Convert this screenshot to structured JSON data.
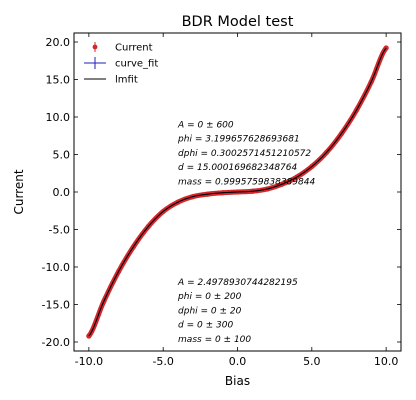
{
  "chart_data": {
    "type": "scatter",
    "title": "BDR Model test",
    "xlabel": "Bias",
    "ylabel": "Current",
    "xlim": [
      -11,
      11
    ],
    "ylim": [
      -21.2,
      21.2
    ],
    "xticks": [
      -10,
      -5,
      0,
      5,
      10
    ],
    "yticks": [
      -20,
      -15,
      -10,
      -5,
      0,
      5,
      10,
      15,
      20
    ],
    "xtick_labels": [
      "-10.0",
      "-5.0",
      "0.0",
      "5.0",
      "10.0"
    ],
    "ytick_labels": [
      "-20.0",
      "-15.0",
      "-10.0",
      "-5.0",
      "0.0",
      "5.0",
      "10.0",
      "15.0",
      "20.0"
    ],
    "grid": false,
    "legend_position": "top-left",
    "series": [
      {
        "name": "Current",
        "kind": "errorbar-points",
        "color": "#d62728"
      },
      {
        "name": "curve_fit",
        "kind": "line",
        "color": "#1f1fb4"
      },
      {
        "name": "lmfit",
        "kind": "line",
        "color": "#000000"
      }
    ],
    "x": [
      -10,
      -9,
      -8,
      -7,
      -6,
      -5,
      -4,
      -3,
      -2,
      -1,
      0,
      1,
      2,
      3,
      4,
      5,
      6,
      7,
      8,
      9,
      10
    ],
    "y": [
      -19.2,
      -14.6,
      -10.6,
      -7.3,
      -4.6,
      -2.6,
      -1.35,
      -0.62,
      -0.28,
      -0.1,
      0.0,
      0.1,
      0.4,
      1.05,
      2.0,
      3.4,
      5.3,
      7.8,
      10.9,
      14.7,
      19.2
    ],
    "annotations": [
      {
        "lines": [
          {
            "var": "A",
            "rest": " = 0 ± 600"
          },
          {
            "var": "phi",
            "rest": " = 3.199657628693681"
          },
          {
            "var": "dphi",
            "rest": " = 0.3002571451210572"
          },
          {
            "var": "d",
            "rest": " = 15.000169682348764"
          },
          {
            "var": "mass",
            "rest": " = 0.9995759838389844"
          }
        ],
        "anchor_x": -4.0,
        "anchor_y": 8.6
      },
      {
        "lines": [
          {
            "var": "A",
            "rest": " = 2.4978930744282195"
          },
          {
            "var": "phi",
            "rest": " = 0 ± 200"
          },
          {
            "var": "dphi",
            "rest": " = 0 ± 20"
          },
          {
            "var": "d",
            "rest": " = 0 ± 300"
          },
          {
            "var": "mass",
            "rest": " = 0 ± 100"
          }
        ],
        "anchor_x": -4.0,
        "anchor_y": -12.4
      }
    ]
  }
}
